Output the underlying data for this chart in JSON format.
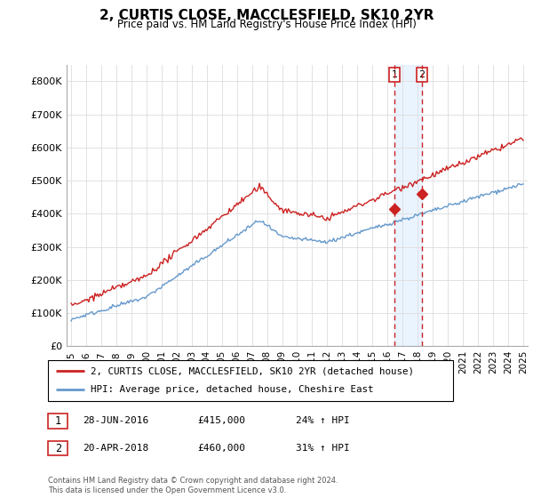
{
  "title": "2, CURTIS CLOSE, MACCLESFIELD, SK10 2YR",
  "subtitle": "Price paid vs. HM Land Registry's House Price Index (HPI)",
  "legend_line1": "2, CURTIS CLOSE, MACCLESFIELD, SK10 2YR (detached house)",
  "legend_line2": "HPI: Average price, detached house, Cheshire East",
  "transaction1_label": "1",
  "transaction1_date": "28-JUN-2016",
  "transaction1_price": "£415,000",
  "transaction1_hpi": "24% ↑ HPI",
  "transaction2_label": "2",
  "transaction2_date": "20-APR-2018",
  "transaction2_price": "£460,000",
  "transaction2_hpi": "31% ↑ HPI",
  "footer": "Contains HM Land Registry data © Crown copyright and database right 2024.\nThis data is licensed under the Open Government Licence v3.0.",
  "red_color": "#cc2222",
  "blue_color": "#6699cc",
  "dashed_color": "#cc2222",
  "shade_color": "#ddeeff",
  "ylim": [
    0,
    850000
  ],
  "yticks": [
    0,
    100000,
    200000,
    300000,
    400000,
    500000,
    600000,
    700000,
    800000
  ],
  "ytick_labels": [
    "£0",
    "£100K",
    "£200K",
    "£300K",
    "£400K",
    "£500K",
    "£600K",
    "£700K",
    "£800K"
  ],
  "sale1_x": 2016.46,
  "sale1_y": 415000,
  "sale2_x": 2018.29,
  "sale2_y": 460000,
  "xmin": 1995,
  "xmax": 2025
}
